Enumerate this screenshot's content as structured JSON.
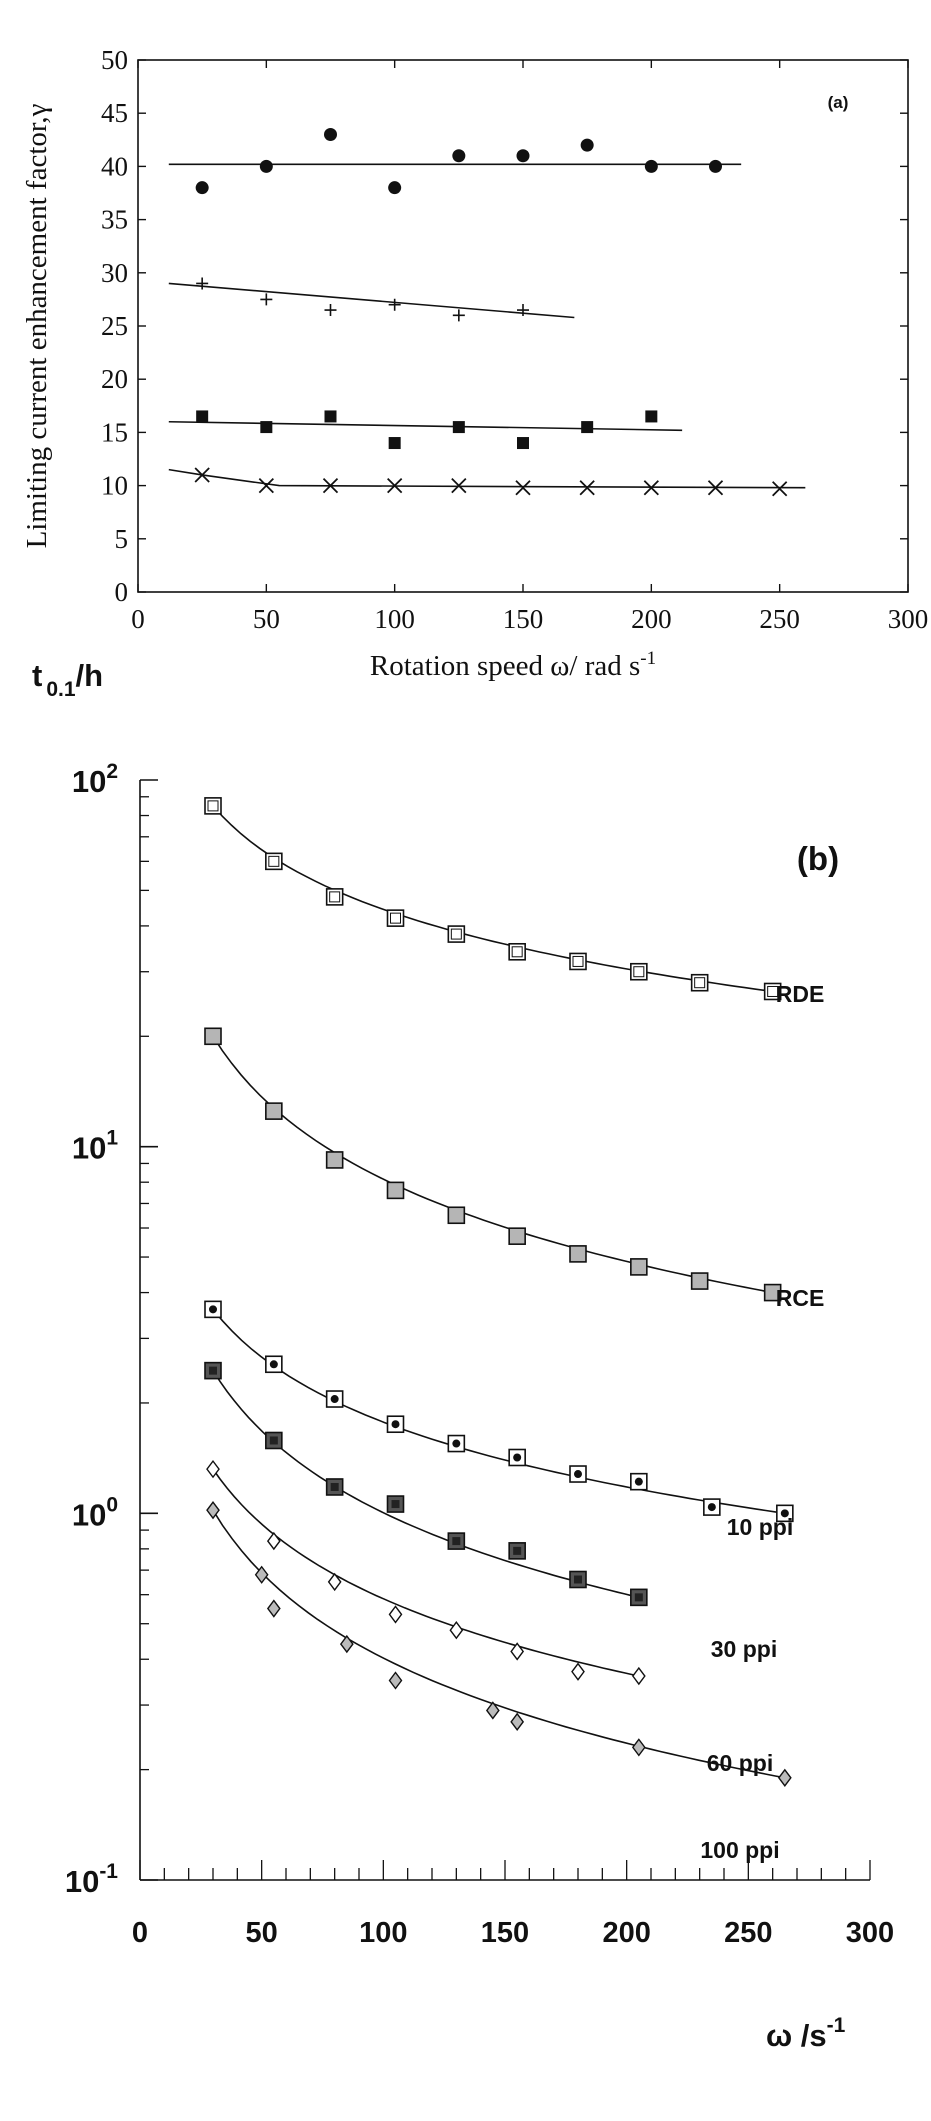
{
  "chart_data": [
    {
      "type": "scatter",
      "panel_label": "(a)",
      "xlabel": "Rotation speed ω/ rad s",
      "xlabel_sup": "-1",
      "ylabel": "Limiting current enhancement factor,γ",
      "xlim": [
        0,
        300
      ],
      "ylim": [
        0,
        50
      ],
      "xticks": [
        0,
        50,
        100,
        150,
        200,
        250,
        300
      ],
      "yticks": [
        0,
        5,
        10,
        15,
        20,
        25,
        30,
        35,
        40,
        45,
        50
      ],
      "series": [
        {
          "marker": "filled-circle",
          "x": [
            25,
            50,
            75,
            100,
            125,
            150,
            175,
            200,
            225
          ],
          "y": [
            38,
            40,
            43,
            38,
            41,
            41,
            42,
            40,
            40
          ],
          "fit": [
            [
              12,
              40.2
            ],
            [
              235,
              40.2
            ]
          ]
        },
        {
          "marker": "plus",
          "x": [
            25,
            50,
            75,
            100,
            125,
            150
          ],
          "y": [
            29,
            27.5,
            26.5,
            27,
            26,
            26.5
          ],
          "fit": [
            [
              12,
              29
            ],
            [
              170,
              25.8
            ]
          ]
        },
        {
          "marker": "filled-square",
          "x": [
            25,
            50,
            75,
            100,
            125,
            150,
            175,
            200
          ],
          "y": [
            16.5,
            15.5,
            16.5,
            14,
            15.5,
            14,
            15.5,
            16.5
          ],
          "fit": [
            [
              12,
              16
            ],
            [
              212,
              15.2
            ]
          ]
        },
        {
          "marker": "cross",
          "x": [
            25,
            50,
            75,
            100,
            125,
            150,
            175,
            200,
            225,
            250
          ],
          "y": [
            11,
            10,
            10,
            10,
            10,
            9.8,
            9.8,
            9.8,
            9.8,
            9.7
          ],
          "fit": [
            [
              12,
              11.5
            ],
            [
              25,
              11
            ],
            [
              40,
              10.5
            ],
            [
              55,
              10
            ],
            [
              260,
              9.8
            ]
          ]
        }
      ]
    },
    {
      "type": "scatter",
      "panel_label": "(b)",
      "ylabel": "t",
      "ylabel_sub": "0.1",
      "ylabel_tail": "/h",
      "xlabel": "ω /s",
      "xlabel_sup": "-1",
      "y_scale": "log",
      "xlim": [
        0,
        300
      ],
      "ylim": [
        0.1,
        100
      ],
      "xticks": [
        0,
        50,
        100,
        150,
        200,
        250,
        300
      ],
      "yticks": [
        {
          "base": "10",
          "exp": "-1",
          "value": 0.1
        },
        {
          "base": "10",
          "exp": "0",
          "value": 1
        },
        {
          "base": "10",
          "exp": "1",
          "value": 10
        },
        {
          "base": "10",
          "exp": "2",
          "value": 100
        }
      ],
      "series": [
        {
          "name": "RDE",
          "marker": "open-square",
          "x": [
            30,
            55,
            80,
            105,
            130,
            155,
            180,
            205,
            230,
            260
          ],
          "y": [
            85,
            60,
            48,
            42,
            38,
            34,
            32,
            30,
            28,
            26.5
          ]
        },
        {
          "name": "RCE",
          "marker": "shaded-square",
          "x": [
            30,
            55,
            80,
            105,
            130,
            155,
            180,
            205,
            230,
            260
          ],
          "y": [
            20,
            12.5,
            9.2,
            7.6,
            6.5,
            5.7,
            5.1,
            4.7,
            4.3,
            4.0
          ]
        },
        {
          "name": "10 ppi",
          "marker": "square-dot",
          "x": [
            30,
            55,
            80,
            105,
            130,
            155,
            180,
            205,
            235,
            265
          ],
          "y": [
            3.6,
            2.55,
            2.05,
            1.75,
            1.55,
            1.42,
            1.28,
            1.22,
            1.04,
            1.0
          ]
        },
        {
          "name": "30 ppi",
          "marker": "dark-square",
          "x": [
            30,
            55,
            80,
            105,
            130,
            155,
            180,
            205
          ],
          "y": [
            2.45,
            1.58,
            1.18,
            1.06,
            0.84,
            0.79,
            0.66,
            0.59
          ]
        },
        {
          "name": "60 ppi",
          "marker": "diamond",
          "x": [
            30,
            55,
            80,
            105,
            130,
            155,
            180,
            205
          ],
          "y": [
            1.32,
            0.84,
            0.65,
            0.53,
            0.48,
            0.42,
            0.37,
            0.36
          ]
        },
        {
          "name": "100 ppi",
          "marker": "shaded-diamond",
          "x": [
            30,
            50,
            55,
            85,
            105,
            145,
            155,
            205,
            265
          ],
          "y": [
            1.02,
            0.68,
            0.55,
            0.44,
            0.35,
            0.29,
            0.27,
            0.23,
            0.19
          ]
        }
      ]
    }
  ]
}
